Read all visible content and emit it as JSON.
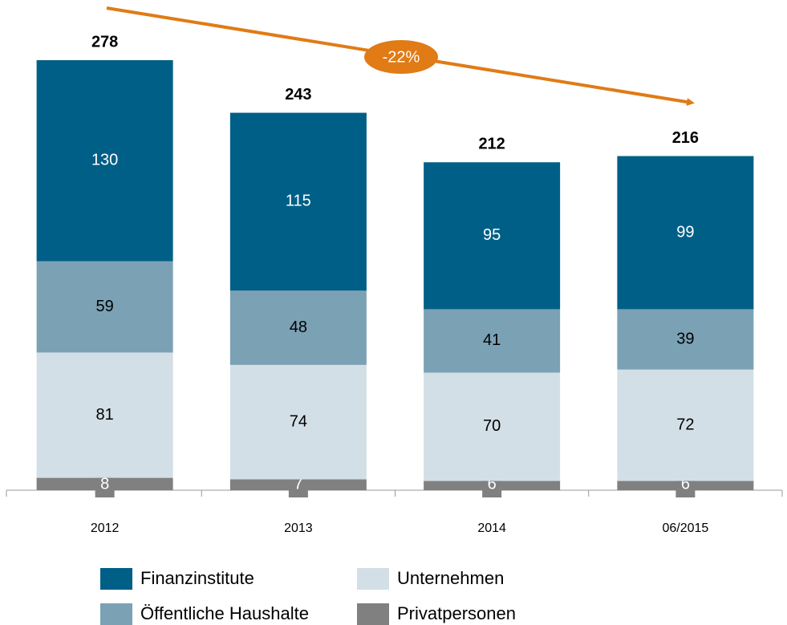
{
  "chart_data": {
    "type": "stacked_bar",
    "categories": [
      "2012",
      "2013",
      "2014",
      "06/2015"
    ],
    "series": [
      {
        "name": "Privatpersonen",
        "color": "#808080",
        "values": [
          8,
          7,
          6,
          6
        ]
      },
      {
        "name": "Unternehmen",
        "color": "#d3dfe6",
        "values": [
          81,
          74,
          70,
          72
        ]
      },
      {
        "name": "Öffentliche Haushalte",
        "color": "#7ba1b4",
        "values": [
          59,
          48,
          41,
          39
        ]
      },
      {
        "name": "Finanzinstitute",
        "color": "#005f87",
        "values": [
          130,
          115,
          95,
          99
        ]
      }
    ],
    "totals": [
      278,
      243,
      212,
      216
    ],
    "annotation": "-22%",
    "annotation_color": "#e07b16"
  }
}
